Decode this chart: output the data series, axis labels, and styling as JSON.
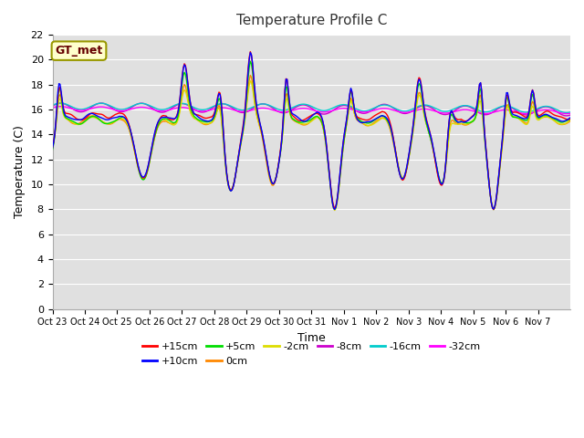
{
  "title": "Temperature Profile C",
  "xlabel": "Time",
  "ylabel": "Temperature (C)",
  "ylim": [
    0,
    22
  ],
  "yticks": [
    0,
    2,
    4,
    6,
    8,
    10,
    12,
    14,
    16,
    18,
    20,
    22
  ],
  "series_colors": {
    "+15cm": "#ff0000",
    "+10cm": "#0000ff",
    "+5cm": "#00dd00",
    "0cm": "#ff8800",
    "-2cm": "#dddd00",
    "-8cm": "#cc00cc",
    "-16cm": "#00cccc",
    "-32cm": "#ff00ff"
  },
  "xtick_labels": [
    "Oct 23",
    "Oct 24",
    "Oct 25",
    "Oct 26",
    "Oct 27",
    "Oct 28",
    "Oct 29",
    "Oct 30",
    "Oct 31",
    "Nov 1",
    "Nov 2",
    "Nov 3",
    "Nov 4",
    "Nov 5",
    "Nov 6",
    "Nov 7"
  ],
  "annotation_text": "GT_met"
}
